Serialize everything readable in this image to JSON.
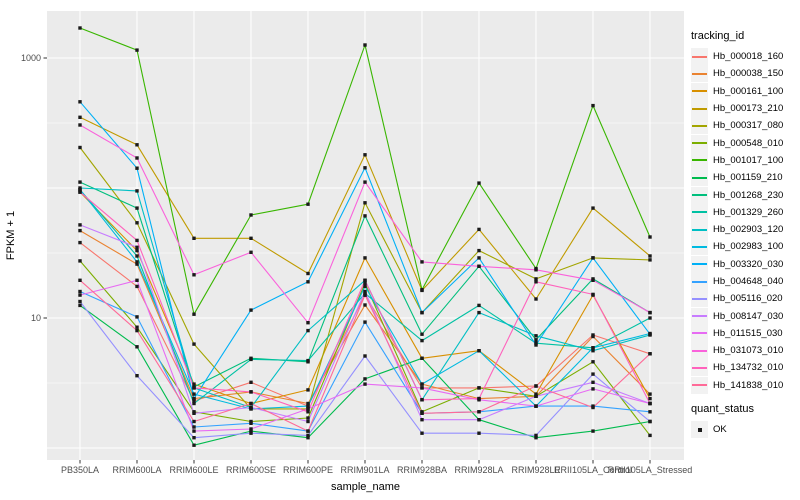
{
  "chart_data": {
    "type": "line",
    "title": "",
    "xlabel": "sample_name",
    "ylabel": "FPKM + 1",
    "y_scale": "log10",
    "ylim": [
      0.8,
      2300
    ],
    "grid": "on",
    "panel_bg": "#EBEBEB",
    "grid_color": "#FFFFFF",
    "point_color": "#1a1a1a",
    "y_ticks": [
      {
        "label": "10",
        "value": 10
      },
      {
        "label": "1000",
        "value": 1000
      }
    ],
    "y_major_gridlines": [
      1,
      10,
      100,
      1000
    ],
    "y_minor_gridlines": [
      3.162,
      31.62,
      316.2
    ],
    "legend_title": "tracking_id",
    "legend2_title": "quant_status",
    "legend2_items": [
      {
        "label": "OK",
        "marker": "black-square"
      }
    ],
    "categories": [
      "PB350LA",
      "RRIM600LA",
      "RRIM600LE",
      "RRIM600SE",
      "RRIM600PE",
      "RRIM901LA",
      "RRIM928BA",
      "RRIM928LA",
      "RRIM928LE",
      "RRII105LA_Control",
      "RRII105LA_Stressed"
    ],
    "series": [
      {
        "name": "Hb_000018_160",
        "color": "#F8766D",
        "values": [
          38,
          17.5,
          2.3,
          3.2,
          2.1,
          15,
          2.9,
          2.9,
          3.0,
          7.4,
          5.3
        ]
      },
      {
        "name": "Hb_000038_150",
        "color": "#EA8331",
        "values": [
          47,
          26,
          2.4,
          2.7,
          2.2,
          12.6,
          3.1,
          2.4,
          2.5,
          7.2,
          2.6
        ]
      },
      {
        "name": "Hb_000161_100",
        "color": "#D89000",
        "values": [
          93,
          33,
          3.1,
          2.2,
          2.8,
          29,
          4.9,
          5.6,
          2.6,
          15,
          2.4
        ]
      },
      {
        "name": "Hb_000173_210",
        "color": "#C09B00",
        "values": [
          350,
          215,
          41,
          41,
          22,
          180,
          16.3,
          48,
          14,
          70,
          30
        ]
      },
      {
        "name": "Hb_000317_080",
        "color": "#A3A500",
        "values": [
          205,
          54,
          6.3,
          2.0,
          2.0,
          77,
          11,
          33,
          20,
          29,
          28
        ]
      },
      {
        "name": "Hb_000548_010",
        "color": "#7CAE00",
        "values": [
          27.5,
          8.5,
          1.9,
          1.6,
          1.7,
          18.5,
          1.9,
          2.9,
          2.5,
          4.6,
          1.25
        ]
      },
      {
        "name": "Hb_001017_100",
        "color": "#39B600",
        "values": [
          1700,
          1150,
          10.7,
          62,
          75,
          1260,
          16.5,
          109,
          24,
          430,
          42
        ]
      },
      {
        "name": "Hb_001159_210",
        "color": "#00BB4E",
        "values": [
          12.5,
          6.0,
          1.05,
          1.35,
          1.2,
          3.4,
          4.9,
          1.65,
          1.2,
          1.35,
          1.6
        ]
      },
      {
        "name": "Hb_001268_230",
        "color": "#00BF7D",
        "values": [
          111,
          70,
          2.95,
          4.9,
          4.6,
          61,
          7.5,
          25,
          6.8,
          20,
          11
        ]
      },
      {
        "name": "Hb_001329_260",
        "color": "#00C1A3",
        "values": [
          97,
          30,
          2.2,
          4.8,
          4.7,
          15.5,
          6.7,
          12.5,
          6.4,
          5.9,
          10
        ]
      },
      {
        "name": "Hb_002903_120",
        "color": "#00BFC4",
        "values": [
          100,
          95,
          2.9,
          2.05,
          8.0,
          19.5,
          2.35,
          11,
          7.3,
          5.6,
          7.4
        ]
      },
      {
        "name": "Hb_002983_100",
        "color": "#00BAE0",
        "values": [
          97,
          27,
          2.6,
          2.0,
          2.1,
          17.5,
          3.1,
          5.6,
          2.1,
          5.9,
          7.6
        ]
      },
      {
        "name": "Hb_003320_030",
        "color": "#00B0F6",
        "values": [
          460,
          142,
          2.4,
          11.5,
          19,
          143,
          11,
          29,
          6.2,
          29,
          7.5
        ]
      },
      {
        "name": "Hb_004648_040",
        "color": "#35A2FF",
        "values": [
          16,
          10.2,
          1.45,
          1.55,
          1.35,
          9.3,
          1.85,
          1.9,
          2.1,
          2.1,
          1.9
        ]
      },
      {
        "name": "Hb_005116_020",
        "color": "#9590FF",
        "values": [
          13.4,
          3.6,
          1.2,
          1.3,
          1.25,
          5.1,
          1.3,
          1.3,
          1.25,
          3.7,
          1.6
        ]
      },
      {
        "name": "Hb_008147_030",
        "color": "#C77CFF",
        "values": [
          52,
          35,
          1.85,
          2.05,
          1.6,
          16,
          1.65,
          1.65,
          2.5,
          3.2,
          2.2
        ]
      },
      {
        "name": "Hb_011515_030",
        "color": "#E76BF3",
        "values": [
          15,
          19.5,
          1.35,
          1.4,
          2.0,
          3.1,
          2.9,
          2.35,
          2.1,
          2.85,
          2.2
        ]
      },
      {
        "name": "Hb_031073_010",
        "color": "#FA62DB",
        "values": [
          305,
          170,
          21.5,
          32,
          9.2,
          111,
          27,
          25,
          23.5,
          19.5,
          11
        ]
      },
      {
        "name": "Hb_134732_010",
        "color": "#FF62BC",
        "values": [
          93,
          39.5,
          2.9,
          2.7,
          1.9,
          19.5,
          2.35,
          2.4,
          19,
          15.2,
          2.2
        ]
      },
      {
        "name": "Hb_141838_010",
        "color": "#FF6A98",
        "values": [
          19.5,
          8.0,
          1.6,
          2.2,
          1.35,
          15,
          1.85,
          1.9,
          3.0,
          2.05,
          5.3
        ]
      }
    ]
  }
}
